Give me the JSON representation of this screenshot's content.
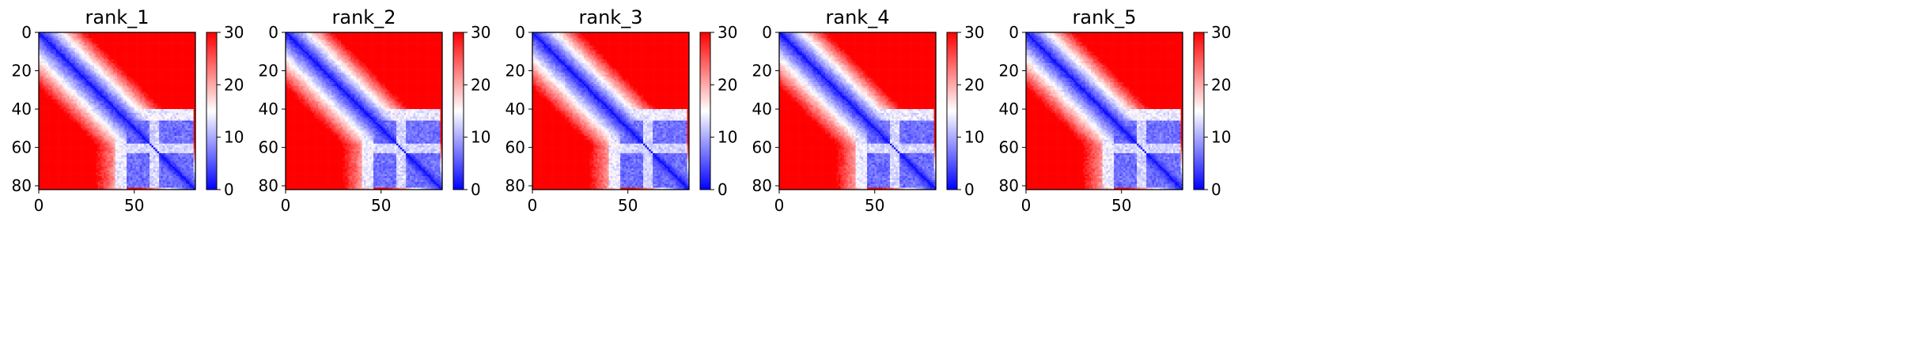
{
  "chart_data": [
    {
      "type": "heatmap",
      "title": "rank_1",
      "x_ticks": [
        0,
        50
      ],
      "y_ticks": [
        0,
        20,
        40,
        60,
        80
      ],
      "xlim": [
        0,
        82
      ],
      "ylim": [
        82,
        0
      ],
      "colorbar": {
        "ticks": [
          0,
          10,
          20,
          30
        ],
        "range": [
          0,
          30
        ],
        "colormap": "bwr",
        "low_color": "#0000ff",
        "mid_color": "#ffffff",
        "high_color": "#ff0000"
      },
      "pattern": "pae-style: low values along diagonal; low block approx 46-80; medium band near residues 60-62",
      "grid": false
    },
    {
      "type": "heatmap",
      "title": "rank_2",
      "x_ticks": [
        0,
        50
      ],
      "y_ticks": [
        0,
        20,
        40,
        60,
        80
      ],
      "xlim": [
        0,
        82
      ],
      "ylim": [
        82,
        0
      ],
      "colorbar": {
        "ticks": [
          0,
          10,
          20,
          30
        ],
        "range": [
          0,
          30
        ],
        "colormap": "bwr",
        "low_color": "#0000ff",
        "mid_color": "#ffffff",
        "high_color": "#ff0000"
      },
      "grid": false
    },
    {
      "type": "heatmap",
      "title": "rank_3",
      "x_ticks": [
        0,
        50
      ],
      "y_ticks": [
        0,
        20,
        40,
        60,
        80
      ],
      "xlim": [
        0,
        82
      ],
      "ylim": [
        82,
        0
      ],
      "colorbar": {
        "ticks": [
          0,
          10,
          20,
          30
        ],
        "range": [
          0,
          30
        ],
        "colormap": "bwr",
        "low_color": "#0000ff",
        "mid_color": "#ffffff",
        "high_color": "#ff0000"
      },
      "grid": false
    },
    {
      "type": "heatmap",
      "title": "rank_4",
      "x_ticks": [
        0,
        50
      ],
      "y_ticks": [
        0,
        20,
        40,
        60,
        80
      ],
      "xlim": [
        0,
        82
      ],
      "ylim": [
        82,
        0
      ],
      "colorbar": {
        "ticks": [
          0,
          10,
          20,
          30
        ],
        "range": [
          0,
          30
        ],
        "colormap": "bwr",
        "low_color": "#0000ff",
        "mid_color": "#ffffff",
        "high_color": "#ff0000"
      },
      "grid": false
    },
    {
      "type": "heatmap",
      "title": "rank_5",
      "x_ticks": [
        0,
        50
      ],
      "y_ticks": [
        0,
        20,
        40,
        60,
        80
      ],
      "xlim": [
        0,
        82
      ],
      "ylim": [
        82,
        0
      ],
      "colorbar": {
        "ticks": [
          0,
          10,
          20,
          30
        ],
        "range": [
          0,
          30
        ],
        "colormap": "bwr",
        "low_color": "#0000ff",
        "mid_color": "#ffffff",
        "high_color": "#ff0000"
      },
      "grid": false
    }
  ]
}
